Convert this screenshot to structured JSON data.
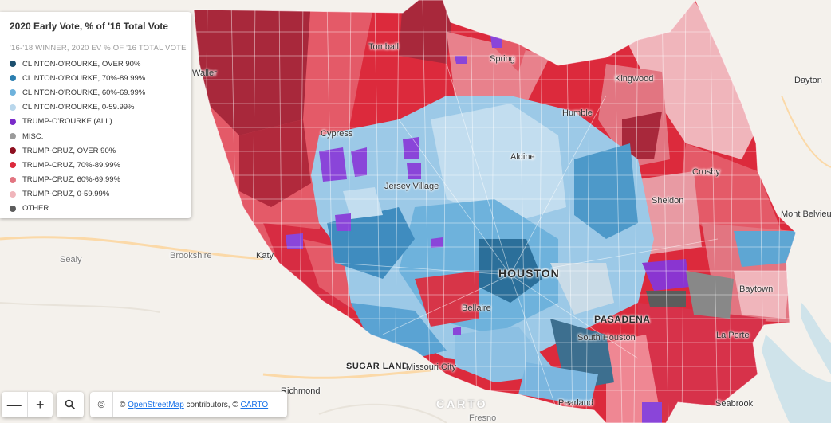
{
  "legend": {
    "title": "2020 Early Vote, % of '16 Total Vote",
    "subtitle": "'16-'18 WINNER, 2020 EV % OF '16 TOTAL VOTE",
    "items": [
      {
        "label": "CLINTON-O'ROURKE, OVER 90%",
        "color": "#1d4f6e"
      },
      {
        "label": "CLINTON-O'ROURKE, 70%-89.99%",
        "color": "#2b7fb0"
      },
      {
        "label": "CLINTON-O'ROURKE, 60%-69.99%",
        "color": "#6eb2dc"
      },
      {
        "label": "CLINTON-O'ROURKE, 0-59.99%",
        "color": "#b9d7ec"
      },
      {
        "label": "TRUMP-O'ROURKE (ALL)",
        "color": "#7a2bc9"
      },
      {
        "label": "MISC.",
        "color": "#9b9b9b"
      },
      {
        "label": "TRUMP-CRUZ, OVER 90%",
        "color": "#8e1020"
      },
      {
        "label": "TRUMP-CRUZ, 70%-89.99%",
        "color": "#dc2a3c"
      },
      {
        "label": "TRUMP-CRUZ, 60%-69.99%",
        "color": "#e27581"
      },
      {
        "label": "TRUMP-CRUZ, 0-59.99%",
        "color": "#f0b5bb"
      },
      {
        "label": "OTHER",
        "color": "#5c5c5c"
      }
    ]
  },
  "places": {
    "waller": "Waller",
    "tomball": "Tomball",
    "spring": "Spring",
    "kingwood": "Kingwood",
    "dayton": "Dayton",
    "humble": "Humble",
    "cypress": "Cypress",
    "aldine": "Aldine",
    "jersey_village": "Jersey Village",
    "crosby": "Crosby",
    "sheldon": "Sheldon",
    "mont_belvieu": "Mont Belvieu",
    "sealy": "Sealy",
    "brookshire": "Brookshire",
    "katy": "Katy",
    "houston": "HOUSTON",
    "baytown": "Baytown",
    "bellaire": "Bellaire",
    "pasadena": "PASADENA",
    "south_houston": "South Houston",
    "la_porte": "La Porte",
    "sugar_land": "SUGAR LAND",
    "missouri_city": "Missouri City",
    "richmond": "Richmond",
    "pearland": "Pearland",
    "seabrook": "Seabrook",
    "fresno": "Fresno"
  },
  "controls": {
    "zoom_out": "—",
    "zoom_in": "+",
    "search_icon": "magnifier-icon"
  },
  "attribution": {
    "copyright_symbol": "©",
    "prefix": "©",
    "osm": "OpenStreetMap",
    "middle": "contributors, ©",
    "carto": "CARTO"
  },
  "watermark": "CARTO"
}
